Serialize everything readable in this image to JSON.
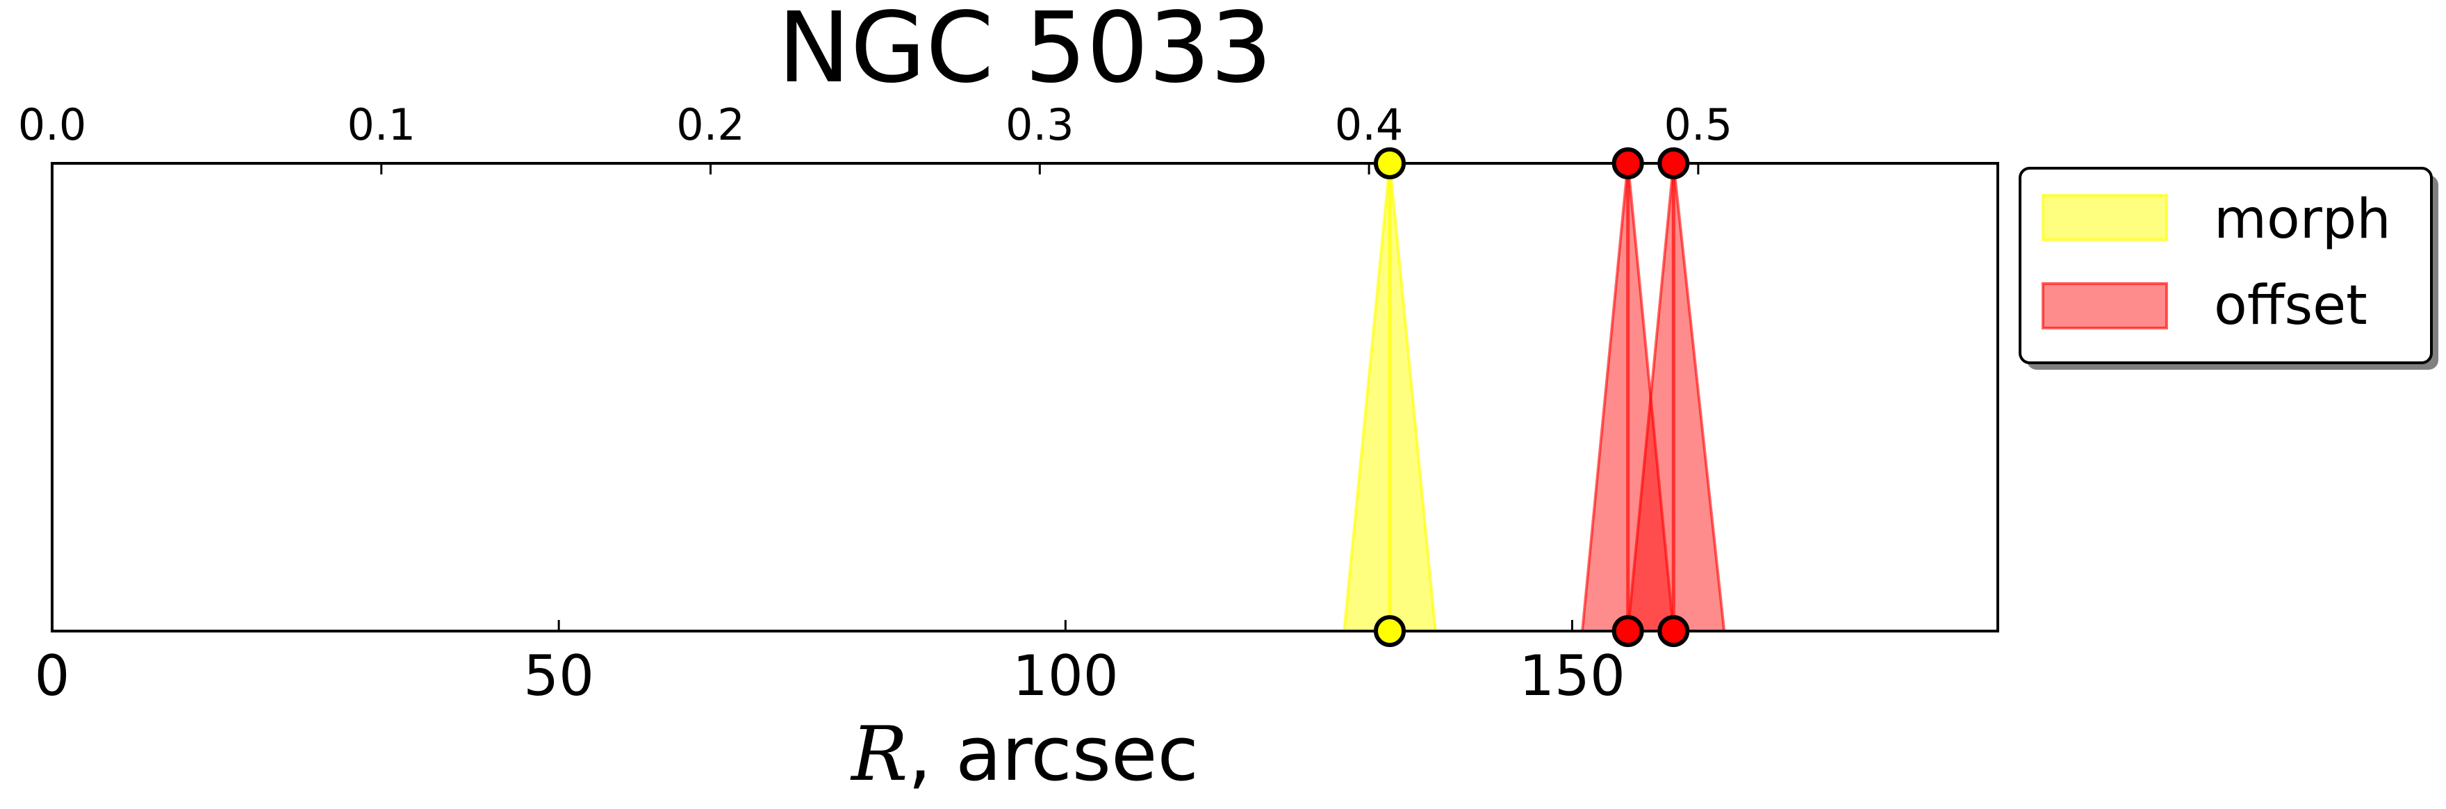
{
  "chart_data": {
    "type": "area",
    "title": "NGC 5033",
    "xlabel_var": "R",
    "xlabel_rest": ", arcsec",
    "xlim": [
      0,
      192
    ],
    "xticks_bottom": [
      0,
      50,
      100,
      150
    ],
    "xlim_top": [
      0,
      0.591
    ],
    "xticks_top": [
      "0.0",
      "0.1",
      "0.2",
      "0.3",
      "0.4",
      "0.5"
    ],
    "legend_position": "outside-upper-right",
    "grid": false,
    "series": [
      {
        "name": "morph",
        "color": "#ffff00",
        "alpha": 0.5,
        "markers": [
          132
        ],
        "bands": [
          {
            "center": 132,
            "low": 127.5,
            "high": 136.5
          }
        ]
      },
      {
        "name": "offset",
        "color": "#ff0000",
        "alpha": 0.45,
        "markers": [
          155.5,
          160
        ],
        "bands": [
          {
            "center": 155.5,
            "low": 151,
            "high": 160
          },
          {
            "center": 160,
            "low": 155.5,
            "high": 165
          }
        ]
      }
    ]
  }
}
